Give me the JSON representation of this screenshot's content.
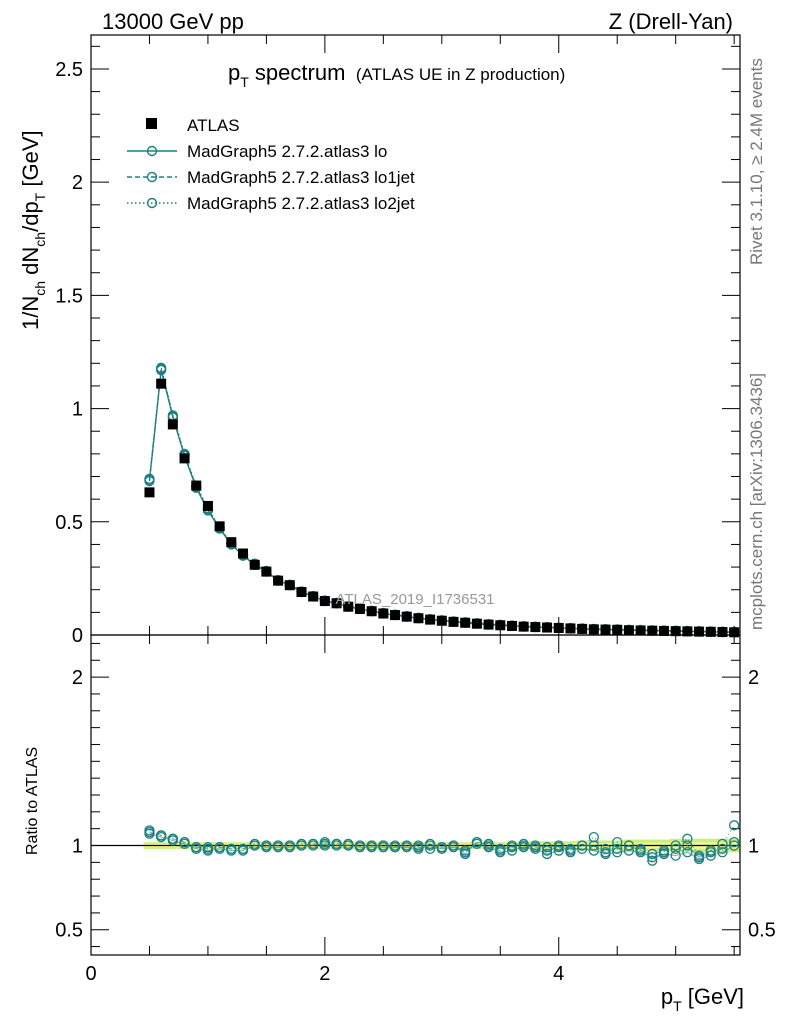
{
  "header": {
    "left": "13000 GeV pp",
    "right": "Z (Drell-Yan)"
  },
  "side_labels": {
    "rivet": "Rivet 3.1.10, ≥ 2.4M events",
    "mcplots": "mcplots.cern.ch [arXiv:1306.3436]"
  },
  "watermark": "ATLAS_2019_I1736531",
  "title": {
    "main": "p",
    "main_sub": "T",
    "main_rest": " spectrum",
    "small": "(ATLAS UE in Z production)"
  },
  "legend": {
    "entries": [
      {
        "label": "ATLAS",
        "style": "data"
      },
      {
        "label": "MadGraph5 2.7.2.atlas3 lo",
        "style": "solid"
      },
      {
        "label": "MadGraph5 2.7.2.atlas3 lo1jet",
        "style": "dashed"
      },
      {
        "label": "MadGraph5 2.7.2.atlas3 lo2jet",
        "style": "dotted"
      }
    ]
  },
  "axes": {
    "xlabel": "p",
    "xlabel_sub": "T",
    "xlabel_unit": " [GeV]",
    "ylabel_main": "1/N",
    "ylabel_main_sub1": "ch",
    "ylabel_main_mid": " dN",
    "ylabel_main_sub2": "ch",
    "ylabel_main_mid2": "/dp",
    "ylabel_main_sub3": "T",
    "ylabel_main_unit": " [GeV]",
    "ylabel_ratio": "Ratio to ATLAS"
  },
  "colors": {
    "data": "#000000",
    "mc": "#1f7f80",
    "band_inner": "#f5f590",
    "band_outer": "#c8f07a"
  },
  "chart_data": [
    {
      "type": "scatter",
      "name": "main",
      "xlim": [
        0,
        5.55
      ],
      "ylim": [
        0,
        2.65
      ],
      "yticks": [
        0,
        0.5,
        1,
        1.5,
        2,
        2.5
      ],
      "ytick_labels": [
        "0",
        "0.5",
        "1",
        "1.5",
        "2",
        "2.5"
      ],
      "x": [
        0.5,
        0.6,
        0.7,
        0.8,
        0.9,
        1.0,
        1.1,
        1.2,
        1.3,
        1.4,
        1.5,
        1.6,
        1.7,
        1.8,
        1.9,
        2.0,
        2.1,
        2.2,
        2.3,
        2.4,
        2.5,
        2.6,
        2.7,
        2.8,
        2.9,
        3.0,
        3.1,
        3.2,
        3.3,
        3.4,
        3.5,
        3.6,
        3.7,
        3.8,
        3.9,
        4.0,
        4.1,
        4.2,
        4.3,
        4.4,
        4.5,
        4.6,
        4.7,
        4.8,
        4.9,
        5.0,
        5.1,
        5.2,
        5.3,
        5.4,
        5.5
      ],
      "series": [
        {
          "name": "ATLAS",
          "values": [
            0.63,
            1.11,
            0.93,
            0.78,
            0.66,
            0.57,
            0.48,
            0.41,
            0.36,
            0.31,
            0.28,
            0.24,
            0.22,
            0.19,
            0.17,
            0.15,
            0.14,
            0.125,
            0.115,
            0.105,
            0.095,
            0.088,
            0.081,
            0.074,
            0.068,
            0.063,
            0.058,
            0.054,
            0.05,
            0.046,
            0.043,
            0.04,
            0.037,
            0.035,
            0.033,
            0.031,
            0.029,
            0.027,
            0.025,
            0.024,
            0.023,
            0.021,
            0.02,
            0.019,
            0.018,
            0.017,
            0.016,
            0.015,
            0.014,
            0.013,
            0.012
          ]
        },
        {
          "name": "MadGraph5 2.7.2.atlas3 lo",
          "values": [
            0.68,
            1.17,
            0.96,
            0.79,
            0.65,
            0.55,
            0.47,
            0.4,
            0.35,
            0.31,
            0.28,
            0.24,
            0.22,
            0.19,
            0.17,
            0.15,
            0.14,
            0.125,
            0.115,
            0.105,
            0.095,
            0.088,
            0.081,
            0.074,
            0.068,
            0.063,
            0.058,
            0.054,
            0.05,
            0.046,
            0.043,
            0.04,
            0.037,
            0.035,
            0.033,
            0.031,
            0.029,
            0.027,
            0.025,
            0.024,
            0.023,
            0.021,
            0.02,
            0.019,
            0.018,
            0.017,
            0.016,
            0.015,
            0.014,
            0.013,
            0.012
          ]
        },
        {
          "name": "MadGraph5 2.7.2.atlas3 lo1jet",
          "values": [
            0.685,
            1.175,
            0.965,
            0.795,
            0.655,
            0.555,
            0.472,
            0.403,
            0.352,
            0.312,
            0.281,
            0.241,
            0.221,
            0.191,
            0.171,
            0.151,
            0.141,
            0.126,
            0.116,
            0.106,
            0.096,
            0.089,
            0.082,
            0.075,
            0.069,
            0.064,
            0.059,
            0.055,
            0.051,
            0.047,
            0.044,
            0.041,
            0.038,
            0.036,
            0.034,
            0.032,
            0.03,
            0.028,
            0.026,
            0.025,
            0.024,
            0.022,
            0.021,
            0.02,
            0.019,
            0.018,
            0.017,
            0.016,
            0.015,
            0.014,
            0.013
          ]
        },
        {
          "name": "MadGraph5 2.7.2.atlas3 lo2jet",
          "values": [
            0.69,
            1.18,
            0.97,
            0.8,
            0.66,
            0.56,
            0.475,
            0.405,
            0.355,
            0.315,
            0.283,
            0.243,
            0.222,
            0.192,
            0.172,
            0.152,
            0.142,
            0.127,
            0.117,
            0.107,
            0.097,
            0.09,
            0.083,
            0.076,
            0.07,
            0.065,
            0.06,
            0.056,
            0.052,
            0.048,
            0.045,
            0.042,
            0.039,
            0.037,
            0.035,
            0.033,
            0.031,
            0.029,
            0.027,
            0.026,
            0.025,
            0.023,
            0.022,
            0.021,
            0.02,
            0.019,
            0.018,
            0.017,
            0.016,
            0.015,
            0.014
          ]
        }
      ]
    },
    {
      "type": "scatter",
      "name": "ratio",
      "xlim": [
        0,
        5.55
      ],
      "ylim": [
        0.35,
        2.25
      ],
      "yticks": [
        0.5,
        1,
        2
      ],
      "ytick_labels": [
        "0.5",
        "1",
        "2"
      ],
      "xticks": [
        0,
        2,
        4
      ],
      "xtick_labels": [
        "0",
        "2",
        "4"
      ],
      "reference": 1.0,
      "x": [
        0.5,
        0.6,
        0.7,
        0.8,
        0.9,
        1.0,
        1.1,
        1.2,
        1.3,
        1.4,
        1.5,
        1.6,
        1.7,
        1.8,
        1.9,
        2.0,
        2.1,
        2.2,
        2.3,
        2.4,
        2.5,
        2.6,
        2.7,
        2.8,
        2.9,
        3.0,
        3.1,
        3.2,
        3.3,
        3.4,
        3.5,
        3.6,
        3.7,
        3.8,
        3.9,
        4.0,
        4.1,
        4.2,
        4.3,
        4.4,
        4.5,
        4.6,
        4.7,
        4.8,
        4.9,
        5.0,
        5.1,
        5.2,
        5.3,
        5.4,
        5.5
      ],
      "band_halfwidth": [
        0.02,
        0.02,
        0.02,
        0.02,
        0.02,
        0.02,
        0.02,
        0.02,
        0.02,
        0.02,
        0.02,
        0.02,
        0.02,
        0.02,
        0.02,
        0.02,
        0.02,
        0.02,
        0.02,
        0.02,
        0.02,
        0.02,
        0.02,
        0.02,
        0.02,
        0.02,
        0.02,
        0.02,
        0.02,
        0.02,
        0.02,
        0.02,
        0.02,
        0.025,
        0.025,
        0.025,
        0.025,
        0.03,
        0.03,
        0.03,
        0.03,
        0.035,
        0.035,
        0.035,
        0.035,
        0.04,
        0.04,
        0.04,
        0.04,
        0.04,
        0.04
      ],
      "series": [
        {
          "name": "MadGraph5 2.7.2.atlas3 lo",
          "values": [
            1.07,
            1.05,
            1.03,
            1.01,
            0.98,
            0.97,
            0.98,
            0.97,
            0.97,
            1.0,
            0.99,
            0.99,
            0.99,
            1.0,
            1.0,
            1.01,
            1.0,
            1.0,
            0.99,
            0.99,
            0.99,
            0.99,
            0.99,
            0.98,
            1.0,
            0.98,
            0.99,
            0.97,
            1.01,
            0.99,
            0.96,
            0.97,
            0.99,
            0.98,
            0.95,
            0.97,
            0.98,
            0.98,
            0.97,
            0.95,
            0.96,
            0.97,
            0.96,
            0.93,
            0.95,
            0.94,
            0.96,
            0.92,
            0.94,
            0.96,
            1.0
          ]
        },
        {
          "name": "MadGraph5 2.7.2.atlas3 lo1jet",
          "values": [
            1.08,
            1.06,
            1.04,
            1.02,
            0.99,
            0.98,
            0.99,
            0.98,
            0.98,
            1.0,
            1.0,
            1.0,
            1.0,
            1.0,
            1.01,
            1.0,
            1.01,
            1.0,
            1.0,
            1.0,
            1.0,
            0.99,
            1.0,
            0.99,
            0.98,
            0.99,
            1.0,
            0.95,
            1.02,
            1.0,
            0.97,
            0.99,
            1.0,
            0.99,
            0.97,
            0.99,
            0.96,
            1.0,
            1.0,
            0.96,
            0.98,
            1.0,
            0.97,
            0.95,
            0.97,
            0.98,
            1.0,
            0.93,
            0.96,
            0.98,
            1.02
          ]
        },
        {
          "name": "MadGraph5 2.7.2.atlas3 lo2jet",
          "values": [
            1.09,
            1.06,
            1.04,
            1.02,
            0.99,
            0.99,
            0.99,
            0.98,
            0.98,
            1.01,
            1.0,
            1.0,
            1.0,
            1.01,
            1.01,
            1.02,
            1.01,
            1.01,
            1.0,
            1.0,
            1.0,
            1.0,
            1.0,
            1.0,
            1.01,
            0.99,
            1.0,
            0.96,
            1.02,
            1.01,
            0.98,
            1.0,
            1.01,
            1.0,
            0.99,
            1.0,
            0.97,
            1.0,
            1.05,
            0.98,
            1.02,
            1.0,
            0.98,
            0.91,
            0.96,
            1.0,
            1.04,
            0.94,
            0.97,
            1.01,
            1.12
          ]
        }
      ]
    }
  ]
}
